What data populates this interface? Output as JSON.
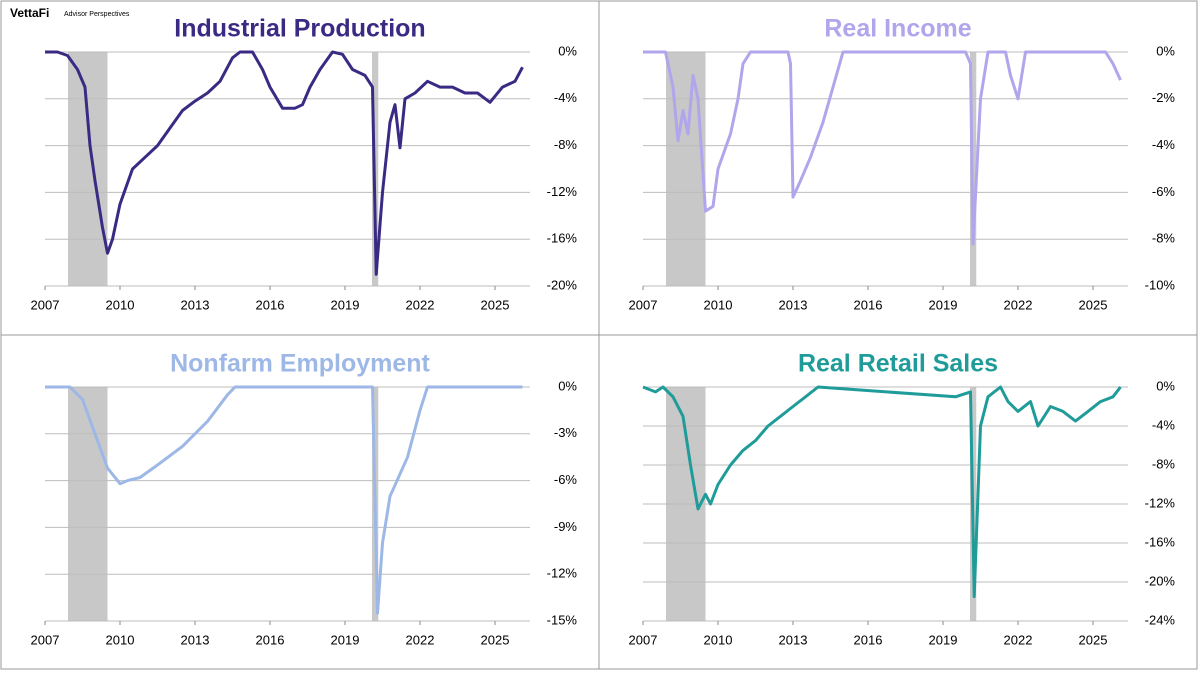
{
  "branding": {
    "logo": "VettaFi",
    "tagline": "Advisor Perspectives"
  },
  "chart_data": [
    {
      "type": "line",
      "title": "Industrial Production",
      "color": "#3b2a84",
      "x": [
        2007.0,
        2007.5,
        2007.9,
        2008.3,
        2008.6,
        2008.8,
        2009.0,
        2009.3,
        2009.5,
        2009.7,
        2010.0,
        2010.5,
        2011.0,
        2011.5,
        2012.0,
        2012.5,
        2013.0,
        2013.5,
        2014.0,
        2014.5,
        2014.8,
        2015.3,
        2015.7,
        2016.0,
        2016.5,
        2017.0,
        2017.3,
        2017.6,
        2018.0,
        2018.5,
        2018.9,
        2019.3,
        2019.8,
        2020.1,
        2020.25,
        2020.5,
        2020.8,
        2021.0,
        2021.2,
        2021.4,
        2021.8,
        2022.3,
        2022.8,
        2023.3,
        2023.8,
        2024.3,
        2024.8,
        2025.3,
        2025.8,
        2026.1
      ],
      "values": [
        0,
        0,
        -0.3,
        -1.5,
        -3,
        -8,
        -11,
        -15,
        -17.2,
        -16,
        -13,
        -10,
        -9,
        -8,
        -6.5,
        -5,
        -4.2,
        -3.5,
        -2.5,
        -0.5,
        0,
        0,
        -1.5,
        -3,
        -4.8,
        -4.8,
        -4.5,
        -3,
        -1.5,
        0,
        -0.2,
        -1.5,
        -2,
        -3,
        -19,
        -12,
        -6,
        -4.5,
        -8.2,
        -4,
        -3.5,
        -2.5,
        -3,
        -3,
        -3.5,
        -3.5,
        -4.3,
        -3,
        -2.5,
        -1.3
      ],
      "recessions": [
        [
          2007.92,
          2009.5
        ],
        [
          2020.08,
          2020.33
        ]
      ],
      "xlim": [
        2007,
        2026.4
      ],
      "xticks": [
        2007,
        2010,
        2013,
        2016,
        2019,
        2022,
        2025
      ],
      "ylim": [
        -20,
        0
      ],
      "yticks": [
        {
          "value": 0,
          "label": "0%"
        },
        {
          "value": -4,
          "label": "-4%"
        },
        {
          "value": -8,
          "label": "-8%"
        },
        {
          "value": -12,
          "label": "-12%"
        },
        {
          "value": -16,
          "label": "-16%"
        },
        {
          "value": -20,
          "label": "-20%"
        }
      ],
      "grid": true
    },
    {
      "type": "line",
      "title": "Real Income",
      "color": "#b1a5ec",
      "x": [
        2007.0,
        2007.9,
        2008.2,
        2008.4,
        2008.6,
        2008.8,
        2009.0,
        2009.2,
        2009.5,
        2009.8,
        2010.0,
        2010.5,
        2010.8,
        2011.0,
        2011.3,
        2012.8,
        2012.9,
        2013.0,
        2013.3,
        2013.7,
        2014.2,
        2014.6,
        2015.0,
        2019.9,
        2020.1,
        2020.2,
        2020.5,
        2020.8,
        2021.5,
        2021.7,
        2022.0,
        2022.3,
        2025.5,
        2025.8,
        2026.1
      ],
      "values": [
        0,
        0,
        -1.5,
        -3.8,
        -2.5,
        -3.5,
        -1,
        -2,
        -6.8,
        -6.6,
        -5,
        -3.5,
        -2,
        -0.5,
        0,
        0,
        -0.5,
        -6.2,
        -5.5,
        -4.5,
        -3,
        -1.5,
        0,
        0,
        -0.5,
        -8.2,
        -2,
        0,
        0,
        -1,
        -2,
        0,
        0,
        -0.5,
        -1.2
      ],
      "recessions": [
        [
          2007.92,
          2009.5
        ],
        [
          2020.08,
          2020.33
        ]
      ],
      "xlim": [
        2007,
        2026.4
      ],
      "xticks": [
        2007,
        2010,
        2013,
        2016,
        2019,
        2022,
        2025
      ],
      "ylim": [
        -10,
        0
      ],
      "yticks": [
        {
          "value": 0,
          "label": "0%"
        },
        {
          "value": -2,
          "label": "-2%"
        },
        {
          "value": -4,
          "label": "-4%"
        },
        {
          "value": -6,
          "label": "-6%"
        },
        {
          "value": -8,
          "label": "-8%"
        },
        {
          "value": -10,
          "label": "-10%"
        }
      ],
      "grid": true
    },
    {
      "type": "line",
      "title": "Nonfarm Employment",
      "color": "#9db8e6",
      "x": [
        2007.0,
        2008.0,
        2008.5,
        2009.0,
        2009.5,
        2010.0,
        2010.3,
        2010.8,
        2011.5,
        2012.5,
        2013.5,
        2014.3,
        2014.6,
        2020.1,
        2020.3,
        2020.5,
        2020.8,
        2021.0,
        2021.5,
        2022.0,
        2022.3,
        2026.1
      ],
      "values": [
        0,
        0,
        -0.8,
        -3,
        -5.2,
        -6.2,
        -6,
        -5.8,
        -5,
        -3.8,
        -2.2,
        -0.5,
        0,
        0,
        -14.5,
        -10,
        -7,
        -6.3,
        -4.5,
        -1.5,
        0,
        0
      ],
      "recessions": [
        [
          2007.92,
          2009.5
        ],
        [
          2020.08,
          2020.33
        ]
      ],
      "xlim": [
        2007,
        2026.4
      ],
      "xticks": [
        2007,
        2010,
        2013,
        2016,
        2019,
        2022,
        2025
      ],
      "ylim": [
        -15,
        0
      ],
      "yticks": [
        {
          "value": 0,
          "label": "0%"
        },
        {
          "value": -3,
          "label": "-3%"
        },
        {
          "value": -6,
          "label": "-6%"
        },
        {
          "value": -9,
          "label": "-9%"
        },
        {
          "value": -12,
          "label": "-12%"
        },
        {
          "value": -15,
          "label": "-15%"
        }
      ],
      "grid": true
    },
    {
      "type": "line",
      "title": "Real Retail Sales",
      "color": "#1f9c99",
      "x": [
        2007.0,
        2007.5,
        2007.8,
        2008.2,
        2008.6,
        2008.9,
        2009.2,
        2009.5,
        2009.7,
        2010.0,
        2010.5,
        2011.0,
        2011.5,
        2012.0,
        2012.5,
        2013.0,
        2013.5,
        2014.0,
        2019.5,
        2020.1,
        2020.25,
        2020.5,
        2020.8,
        2021.3,
        2021.6,
        2022.0,
        2022.5,
        2022.8,
        2023.3,
        2023.8,
        2024.3,
        2024.8,
        2025.3,
        2025.8,
        2026.1
      ],
      "values": [
        0,
        -0.5,
        0,
        -1,
        -3,
        -8,
        -12.5,
        -11,
        -12,
        -10,
        -8,
        -6.5,
        -5.5,
        -4,
        -3,
        -2,
        -1,
        0,
        -1,
        -0.5,
        -21.5,
        -4,
        -1,
        0,
        -1.5,
        -2.5,
        -1.5,
        -4,
        -2,
        -2.5,
        -3.5,
        -2.5,
        -1.5,
        -1,
        0
      ],
      "recessions": [
        [
          2007.92,
          2009.5
        ],
        [
          2020.08,
          2020.33
        ]
      ],
      "xlim": [
        2007,
        2026.4
      ],
      "xticks": [
        2007,
        2010,
        2013,
        2016,
        2019,
        2022,
        2025
      ],
      "ylim": [
        -24,
        0
      ],
      "yticks": [
        {
          "value": 0,
          "label": "0%"
        },
        {
          "value": -4,
          "label": "-4%"
        },
        {
          "value": -8,
          "label": "-8%"
        },
        {
          "value": -12,
          "label": "-12%"
        },
        {
          "value": -16,
          "label": "-16%"
        },
        {
          "value": -20,
          "label": "-20%"
        },
        {
          "value": -24,
          "label": "-24%"
        }
      ],
      "grid": true
    }
  ]
}
